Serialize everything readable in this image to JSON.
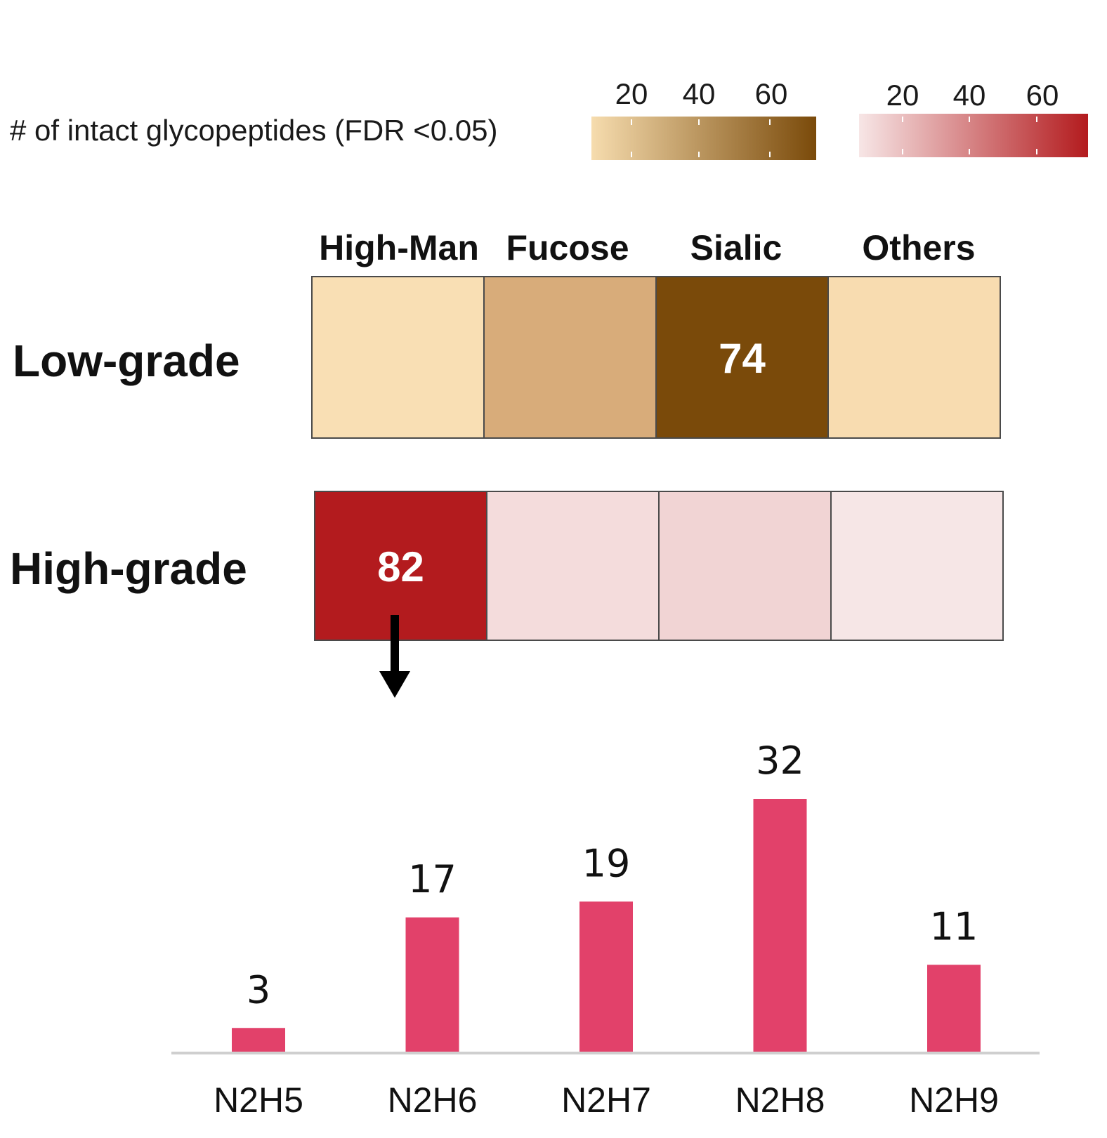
{
  "legend": {
    "title": "# of intact glycopeptides (FDR <0.05)",
    "scales": [
      {
        "name": "low-grade-scale",
        "ticks": [
          20,
          40,
          60
        ],
        "min": 0,
        "max": 74,
        "color_low": "#f6dcae",
        "color_high": "#7a4a0a"
      },
      {
        "name": "high-grade-scale",
        "ticks": [
          20,
          40,
          60
        ],
        "min": 0,
        "max": 82,
        "color_low": "#f7e6e6",
        "color_high": "#b31b1e"
      }
    ]
  },
  "chart_data": [
    {
      "type": "heatmap",
      "columns": [
        "High-Man",
        "Fucose",
        "Sialic",
        "Others"
      ],
      "rows": [
        {
          "label": "Low-grade",
          "colors": [
            "#f9dfb4",
            "#d8ac7a",
            "#7a4a0a",
            "#f8dcb0"
          ],
          "annotations": [
            "",
            "",
            "74",
            ""
          ]
        },
        {
          "label": "High-grade",
          "colors": [
            "#b31b1e",
            "#f4dcdc",
            "#f1d4d4",
            "#f6e6e6"
          ],
          "annotations": [
            "82",
            "",
            "",
            ""
          ]
        }
      ]
    },
    {
      "type": "bar",
      "categories": [
        "N2H5",
        "N2H6",
        "N2H7",
        "N2H8",
        "N2H9"
      ],
      "values": [
        3,
        17,
        19,
        32,
        11
      ],
      "ylim": [
        0,
        32
      ],
      "color": "#e2416a"
    }
  ]
}
